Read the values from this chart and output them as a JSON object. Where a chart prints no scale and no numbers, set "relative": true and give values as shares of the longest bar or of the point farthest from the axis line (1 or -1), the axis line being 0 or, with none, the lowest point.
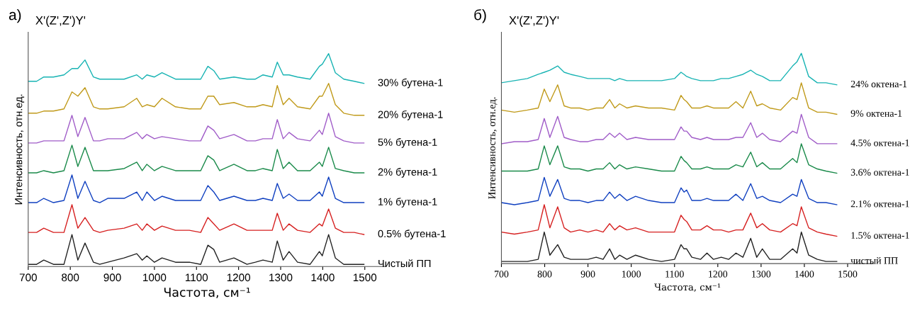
{
  "chart_data": [
    {
      "type": "line",
      "title": "X'(Z',Z')Y'",
      "xlabel": "Частота, см⁻¹",
      "ylabel": "Интенсивность, отн.ед.",
      "annotations": [
        "a)"
      ],
      "relative": true,
      "tick_labels": "x",
      "xlim": [
        700,
        1550
      ],
      "xticks": [
        700,
        800,
        900,
        1000,
        1100,
        1200,
        1300,
        1400,
        1500
      ],
      "x": [
        700,
        720,
        737,
        760,
        785,
        804,
        818,
        835,
        855,
        870,
        889,
        928,
        958,
        971,
        982,
        1000,
        1018,
        1050,
        1083,
        1110,
        1127,
        1141,
        1155,
        1189,
        1220,
        1240,
        1258,
        1280,
        1292,
        1306,
        1320,
        1340,
        1370,
        1392,
        1399,
        1414,
        1430,
        1450,
        1475,
        1498
      ],
      "series": [
        {
          "name": "Чистый ПП",
          "color": "#222222",
          "values": [
            0.01,
            0.01,
            0.03,
            0.01,
            0.01,
            0.15,
            0.03,
            0.11,
            0.02,
            0.01,
            0.02,
            0.04,
            0.06,
            0.03,
            0.05,
            0.02,
            0.04,
            0.02,
            0.02,
            0.01,
            0.1,
            0.08,
            0.02,
            0.04,
            0.01,
            0.02,
            0.03,
            0.02,
            0.12,
            0.03,
            0.07,
            0.02,
            0.01,
            0.07,
            0.05,
            0.15,
            0.04,
            0.01,
            0.01,
            0.01
          ]
        },
        {
          "name": "0.5% бутена-1",
          "color": "#d62020",
          "values": [
            0.16,
            0.16,
            0.18,
            0.16,
            0.16,
            0.29,
            0.18,
            0.23,
            0.17,
            0.16,
            0.17,
            0.18,
            0.2,
            0.17,
            0.2,
            0.17,
            0.19,
            0.17,
            0.17,
            0.16,
            0.23,
            0.2,
            0.17,
            0.2,
            0.17,
            0.17,
            0.17,
            0.17,
            0.25,
            0.17,
            0.2,
            0.17,
            0.16,
            0.2,
            0.19,
            0.27,
            0.18,
            0.16,
            0.16,
            0.15
          ]
        },
        {
          "name": "1% бутена-1",
          "color": "#1040c0",
          "values": [
            0.3,
            0.3,
            0.32,
            0.3,
            0.31,
            0.43,
            0.32,
            0.4,
            0.31,
            0.3,
            0.32,
            0.32,
            0.35,
            0.31,
            0.35,
            0.31,
            0.33,
            0.31,
            0.31,
            0.31,
            0.38,
            0.35,
            0.31,
            0.33,
            0.31,
            0.31,
            0.32,
            0.31,
            0.39,
            0.32,
            0.34,
            0.31,
            0.31,
            0.35,
            0.33,
            0.42,
            0.32,
            0.3,
            0.3,
            0.3
          ]
        },
        {
          "name": "2% бутена-1",
          "color": "#1a8a4a",
          "values": [
            0.44,
            0.44,
            0.45,
            0.44,
            0.45,
            0.57,
            0.47,
            0.56,
            0.45,
            0.45,
            0.45,
            0.46,
            0.49,
            0.45,
            0.48,
            0.45,
            0.47,
            0.45,
            0.45,
            0.45,
            0.52,
            0.5,
            0.45,
            0.48,
            0.45,
            0.45,
            0.46,
            0.45,
            0.55,
            0.46,
            0.49,
            0.45,
            0.45,
            0.49,
            0.47,
            0.56,
            0.46,
            0.45,
            0.44,
            0.44
          ]
        },
        {
          "name": "5% бутена-1",
          "color": "#a05cc8",
          "values": [
            0.58,
            0.58,
            0.59,
            0.59,
            0.59,
            0.71,
            0.61,
            0.7,
            0.59,
            0.59,
            0.6,
            0.6,
            0.63,
            0.6,
            0.62,
            0.6,
            0.61,
            0.6,
            0.59,
            0.59,
            0.66,
            0.64,
            0.6,
            0.62,
            0.59,
            0.59,
            0.6,
            0.6,
            0.69,
            0.6,
            0.63,
            0.6,
            0.59,
            0.64,
            0.62,
            0.72,
            0.61,
            0.59,
            0.58,
            0.58
          ]
        },
        {
          "name": "20% бутена-1",
          "color": "#c09a1a",
          "values": [
            0.72,
            0.72,
            0.73,
            0.73,
            0.74,
            0.82,
            0.8,
            0.84,
            0.75,
            0.74,
            0.74,
            0.75,
            0.79,
            0.75,
            0.76,
            0.75,
            0.79,
            0.75,
            0.74,
            0.74,
            0.8,
            0.8,
            0.76,
            0.77,
            0.75,
            0.75,
            0.76,
            0.75,
            0.85,
            0.76,
            0.79,
            0.75,
            0.74,
            0.8,
            0.8,
            0.86,
            0.76,
            0.72,
            0.71,
            0.71
          ]
        },
        {
          "name": "30% бутена-1",
          "color": "#17b3b3",
          "values": [
            0.87,
            0.87,
            0.89,
            0.89,
            0.9,
            0.93,
            0.93,
            0.97,
            0.89,
            0.88,
            0.88,
            0.88,
            0.9,
            0.88,
            0.9,
            0.89,
            0.91,
            0.88,
            0.88,
            0.88,
            0.94,
            0.92,
            0.88,
            0.89,
            0.88,
            0.88,
            0.9,
            0.89,
            0.96,
            0.9,
            0.9,
            0.89,
            0.88,
            0.94,
            0.95,
            1.0,
            0.91,
            0.88,
            0.87,
            0.86
          ]
        }
      ]
    },
    {
      "type": "line",
      "title": "X'(Z',Z')Y'",
      "xlabel": "Частота, см⁻¹",
      "ylabel": "Интенсивность, отн.ед.",
      "annotations": [
        "б)"
      ],
      "relative": true,
      "tick_labels": "x",
      "xlim": [
        700,
        1560
      ],
      "xticks": [
        700,
        800,
        900,
        1000,
        1100,
        1200,
        1300,
        1400,
        1500
      ],
      "x": [
        700,
        730,
        760,
        785,
        799,
        812,
        830,
        845,
        860,
        881,
        900,
        919,
        935,
        950,
        962,
        973,
        990,
        1010,
        1040,
        1070,
        1100,
        1115,
        1122,
        1128,
        1140,
        1160,
        1175,
        1190,
        1208,
        1225,
        1242,
        1258,
        1276,
        1290,
        1303,
        1320,
        1345,
        1373,
        1383,
        1393,
        1410,
        1430,
        1450,
        1475
      ],
      "series": [
        {
          "name": "чистый ПП",
          "color": "#222222",
          "values": [
            0.01,
            0.01,
            0.01,
            0.02,
            0.15,
            0.04,
            0.09,
            0.03,
            0.02,
            0.02,
            0.02,
            0.03,
            0.02,
            0.07,
            0.02,
            0.04,
            0.02,
            0.04,
            0.02,
            0.01,
            0.02,
            0.09,
            0.07,
            0.07,
            0.03,
            0.02,
            0.05,
            0.02,
            0.03,
            0.02,
            0.05,
            0.03,
            0.12,
            0.03,
            0.07,
            0.02,
            0.02,
            0.07,
            0.05,
            0.15,
            0.04,
            0.02,
            0.01,
            0.01
          ]
        },
        {
          "name": "1.5% октена-1",
          "color": "#d62020",
          "values": [
            0.15,
            0.14,
            0.15,
            0.16,
            0.28,
            0.17,
            0.27,
            0.17,
            0.15,
            0.16,
            0.15,
            0.16,
            0.15,
            0.19,
            0.16,
            0.18,
            0.16,
            0.17,
            0.15,
            0.15,
            0.15,
            0.23,
            0.21,
            0.2,
            0.16,
            0.16,
            0.18,
            0.16,
            0.16,
            0.15,
            0.16,
            0.16,
            0.24,
            0.17,
            0.19,
            0.16,
            0.15,
            0.19,
            0.18,
            0.27,
            0.17,
            0.15,
            0.14,
            0.13
          ]
        },
        {
          "name": "2.1% октена-1",
          "color": "#1040c0",
          "values": [
            0.29,
            0.28,
            0.29,
            0.3,
            0.41,
            0.32,
            0.4,
            0.31,
            0.3,
            0.3,
            0.29,
            0.3,
            0.3,
            0.34,
            0.31,
            0.33,
            0.3,
            0.32,
            0.3,
            0.29,
            0.29,
            0.36,
            0.34,
            0.35,
            0.3,
            0.3,
            0.31,
            0.3,
            0.3,
            0.3,
            0.33,
            0.3,
            0.38,
            0.31,
            0.32,
            0.3,
            0.29,
            0.33,
            0.32,
            0.4,
            0.31,
            0.29,
            0.29,
            0.28
          ]
        },
        {
          "name": "3.6% октена-1",
          "color": "#1a8a4a",
          "values": [
            0.44,
            0.44,
            0.44,
            0.45,
            0.56,
            0.47,
            0.56,
            0.46,
            0.45,
            0.45,
            0.44,
            0.45,
            0.45,
            0.48,
            0.45,
            0.47,
            0.45,
            0.46,
            0.45,
            0.44,
            0.44,
            0.51,
            0.49,
            0.48,
            0.45,
            0.45,
            0.46,
            0.45,
            0.45,
            0.45,
            0.47,
            0.46,
            0.53,
            0.46,
            0.48,
            0.45,
            0.45,
            0.5,
            0.48,
            0.57,
            0.47,
            0.45,
            0.44,
            0.43
          ]
        },
        {
          "name": "4.5% октена-1",
          "color": "#a05cc8",
          "values": [
            0.57,
            0.58,
            0.58,
            0.59,
            0.69,
            0.6,
            0.7,
            0.6,
            0.59,
            0.58,
            0.58,
            0.59,
            0.59,
            0.62,
            0.6,
            0.62,
            0.59,
            0.6,
            0.59,
            0.59,
            0.59,
            0.65,
            0.63,
            0.63,
            0.6,
            0.59,
            0.6,
            0.59,
            0.59,
            0.59,
            0.6,
            0.6,
            0.67,
            0.6,
            0.62,
            0.59,
            0.58,
            0.63,
            0.62,
            0.71,
            0.6,
            0.57,
            0.57,
            0.57
          ]
        },
        {
          "name": "9% октена-1",
          "color": "#c09a1a",
          "values": [
            0.73,
            0.72,
            0.73,
            0.74,
            0.83,
            0.77,
            0.85,
            0.75,
            0.74,
            0.74,
            0.73,
            0.74,
            0.74,
            0.78,
            0.74,
            0.76,
            0.74,
            0.75,
            0.74,
            0.74,
            0.73,
            0.8,
            0.78,
            0.77,
            0.74,
            0.74,
            0.75,
            0.74,
            0.74,
            0.74,
            0.77,
            0.74,
            0.82,
            0.75,
            0.76,
            0.74,
            0.73,
            0.79,
            0.78,
            0.86,
            0.74,
            0.72,
            0.72,
            0.71
          ]
        },
        {
          "name": "24% октена-1",
          "color": "#17b3b3",
          "values": [
            0.86,
            0.87,
            0.88,
            0.9,
            0.91,
            0.92,
            0.94,
            0.91,
            0.9,
            0.89,
            0.88,
            0.88,
            0.88,
            0.88,
            0.87,
            0.88,
            0.87,
            0.87,
            0.87,
            0.87,
            0.88,
            0.91,
            0.9,
            0.89,
            0.88,
            0.87,
            0.87,
            0.87,
            0.88,
            0.88,
            0.89,
            0.9,
            0.92,
            0.9,
            0.89,
            0.87,
            0.87,
            0.94,
            0.96,
            1.0,
            0.89,
            0.86,
            0.86,
            0.85
          ]
        }
      ]
    }
  ]
}
